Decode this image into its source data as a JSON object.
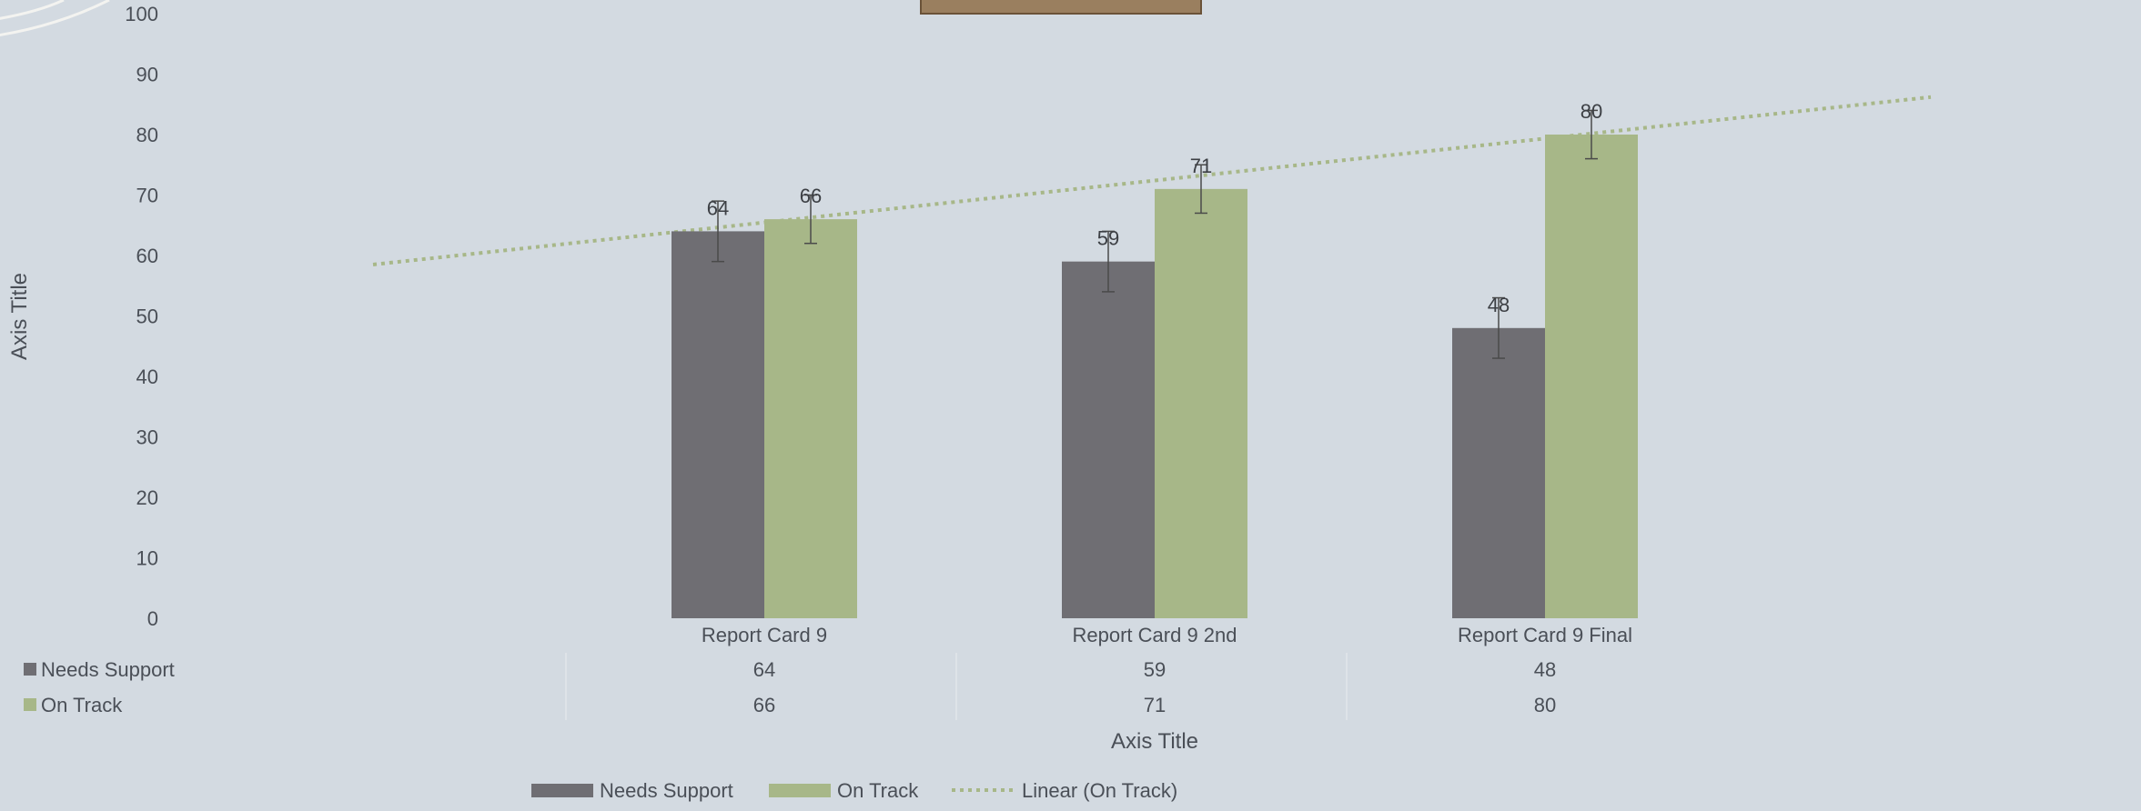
{
  "colors": {
    "background": "#d3dae1",
    "needs_support": "#6f6e73",
    "on_track": "#a7b788",
    "trendline": "#a7b788",
    "error_bar": "#4a4a4a",
    "title_box": "#9a7f5f"
  },
  "chart_data": {
    "type": "bar",
    "categories": [
      "Report Card 9",
      "Report Card 9 2nd",
      "Report Card 9 Final"
    ],
    "series": [
      {
        "name": "Needs Support",
        "values": [
          64,
          59,
          48
        ],
        "error": [
          5,
          5,
          5
        ]
      },
      {
        "name": "On Track",
        "values": [
          66,
          71,
          80
        ],
        "error": [
          4,
          4,
          4
        ]
      }
    ],
    "trendline": {
      "name": "Linear (On Track)",
      "type": "linear",
      "start_value": 58.5,
      "end_value": 86.2
    },
    "data_labels": true,
    "data_table": true,
    "ylim": [
      0,
      100
    ],
    "yticks": [
      0,
      10,
      20,
      30,
      40,
      50,
      60,
      70,
      80,
      90,
      100
    ],
    "xlabel": "Axis Title",
    "ylabel": "Axis Title",
    "legend": [
      "Needs Support",
      "On Track",
      "Linear (On Track)"
    ],
    "legend_position": "bottom",
    "grid": false
  }
}
